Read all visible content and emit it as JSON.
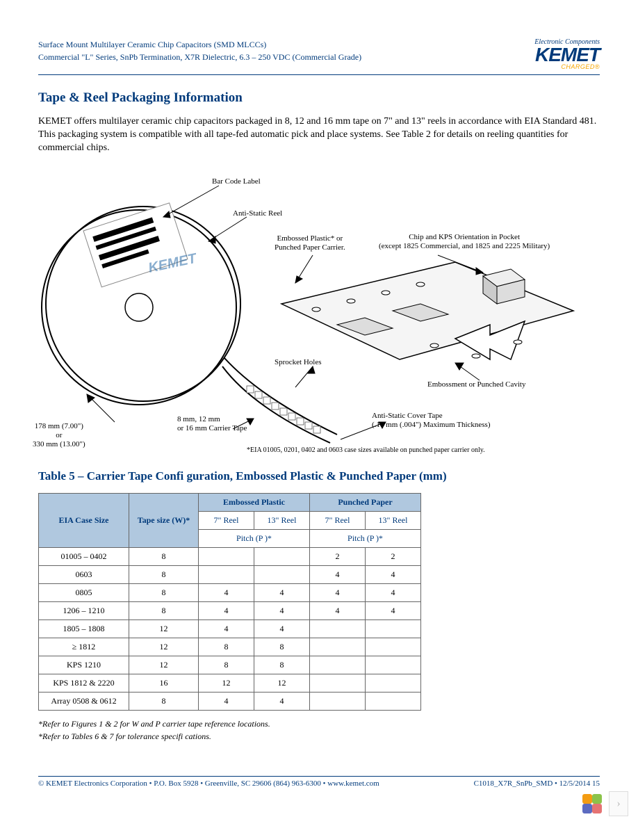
{
  "header": {
    "line1": "Surface Mount Multilayer Ceramic Chip Capacitors (SMD MLCCs)",
    "line2": "Commercial \"L\" Series, SnPb Termination, X7R Dielectric, 6.3 – 250 VDC (Commercial Grade)",
    "logo_top": "Electronic Components",
    "logo_main": "KEMET",
    "logo_sub": "CHARGED®"
  },
  "section_title": "Tape & Reel Packaging Information",
  "body": "KEMET offers multilayer ceramic chip capacitors packaged in 8, 12 and 16 mm tape on 7\" and 13\" reels in accordance with EIA Standard 481. This packaging system is compatible with all tape-fed automatic pick and place systems. See Table 2 for details on reeling quantities for commercial chips.",
  "diagram": {
    "bar_code": "Bar Code Label",
    "anti_static_reel": "Anti-Static Reel",
    "embossed_carrier": "Embossed Plastic* or\nPunched Paper Carrier.",
    "chip_orient": "Chip and KPS Orientation in Pocket\n(except 1825 Commercial, and 1825 and 2225 Military)",
    "sprocket": "Sprocket Holes",
    "emboss_cavity": "Embossment or Punched Cavity",
    "carrier_tape": "8 mm, 12 mm\nor 16 mm Carrier Tape",
    "cover_tape": "Anti-Static Cover Tape\n(.10 mm (.004\") Maximum Thickness)",
    "reel_size": "178 mm (7.00\")\nor\n330 mm (13.00\")",
    "note_eia": "*EIA 01005, 0201, 0402 and 0603 case sizes available on punched paper carrier only.",
    "watermark": "KEMET"
  },
  "table5": {
    "title": "Table 5 – Carrier Tape Confi guration, Embossed Plastic & Punched Paper (mm)",
    "columns": {
      "case_size": "EIA Case Size",
      "tape_size": "Tape size (W)*",
      "embossed": "Embossed Plastic",
      "punched": "Punched Paper",
      "reel7": "7\" Reel",
      "reel13": "13\" Reel",
      "pitch": "Pitch (P )*"
    },
    "rows": [
      [
        "01005 – 0402",
        "8",
        "",
        "",
        "2",
        "2"
      ],
      [
        "0603",
        "8",
        "",
        "",
        "4",
        "4"
      ],
      [
        "0805",
        "8",
        "4",
        "4",
        "4",
        "4"
      ],
      [
        "1206 – 1210",
        "8",
        "4",
        "4",
        "4",
        "4"
      ],
      [
        "1805 – 1808",
        "12",
        "4",
        "4",
        "",
        ""
      ],
      [
        "≥ 1812",
        "12",
        "8",
        "8",
        "",
        ""
      ],
      [
        "KPS 1210",
        "12",
        "8",
        "8",
        "",
        ""
      ],
      [
        "KPS 1812 & 2220",
        "16",
        "12",
        "12",
        "",
        ""
      ],
      [
        "Array 0508 & 0612",
        "8",
        "4",
        "4",
        "",
        ""
      ]
    ],
    "notes": [
      "*Refer to Figures 1 & 2 for W and P    carrier tape reference locations.",
      "*Refer to Tables 6 & 7 for tolerance specifi cations."
    ]
  },
  "footer": {
    "left": "© KEMET Electronics Corporation • P.O. Box 5928 • Greenville, SC 29606 (864) 963-6300 • www.kemet.com",
    "right": "C1018_X7R_SnPb_SMD • 12/5/2014 15"
  },
  "colors": {
    "brand_blue": "#003a7b",
    "brand_orange": "#f7a600",
    "table_header_bg": "#b0c8df",
    "border": "#666666"
  }
}
